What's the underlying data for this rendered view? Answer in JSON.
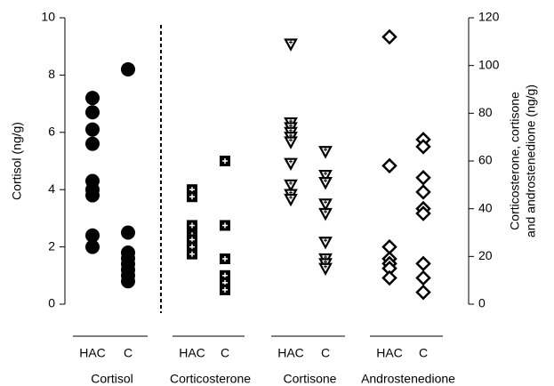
{
  "chart_data": {
    "type": "strip",
    "ylabel": "Cortisol (ng/g)",
    "y2label": [
      "Corticosterone, cortisone",
      "and androstenedione (ng/g)"
    ],
    "ylim": [
      0,
      10
    ],
    "yticks": [
      0,
      2,
      4,
      6,
      8,
      10
    ],
    "y2lim": [
      0,
      120
    ],
    "y2ticks": [
      0,
      20,
      40,
      60,
      80,
      100,
      120
    ],
    "categories": [
      "HAC",
      "C"
    ],
    "series": [
      {
        "name": "Cortisol",
        "axis": "y",
        "marker": "circle",
        "color": "#000000",
        "values": [
          [
            7.2,
            6.7,
            6.1,
            5.6,
            4.3,
            4.0,
            3.8,
            2.4,
            2.0
          ],
          [
            8.2,
            2.5,
            1.8,
            1.6,
            1.4,
            1.2,
            1.0,
            0.8
          ]
        ]
      },
      {
        "name": "Corticosterone",
        "axis": "y2",
        "marker": "square",
        "color": "#000000",
        "values": [
          [
            48,
            45,
            33,
            29,
            27,
            24,
            21
          ],
          [
            60,
            33,
            19,
            12,
            9,
            6
          ]
        ]
      },
      {
        "name": "Cortisone",
        "axis": "y2",
        "marker": "triangle",
        "color": "#000000",
        "values": [
          [
            109,
            76,
            74,
            72,
            70,
            68,
            59,
            50,
            46,
            44
          ],
          [
            64,
            54,
            51,
            42,
            38,
            26,
            19,
            17,
            15
          ]
        ]
      },
      {
        "name": "Androstenedione",
        "axis": "y2",
        "marker": "diamond",
        "color": "#000000",
        "values": [
          [
            112,
            58,
            24,
            19,
            17,
            15,
            11
          ],
          [
            69,
            66,
            53,
            47,
            40,
            38,
            17,
            11,
            5
          ]
        ]
      }
    ]
  }
}
